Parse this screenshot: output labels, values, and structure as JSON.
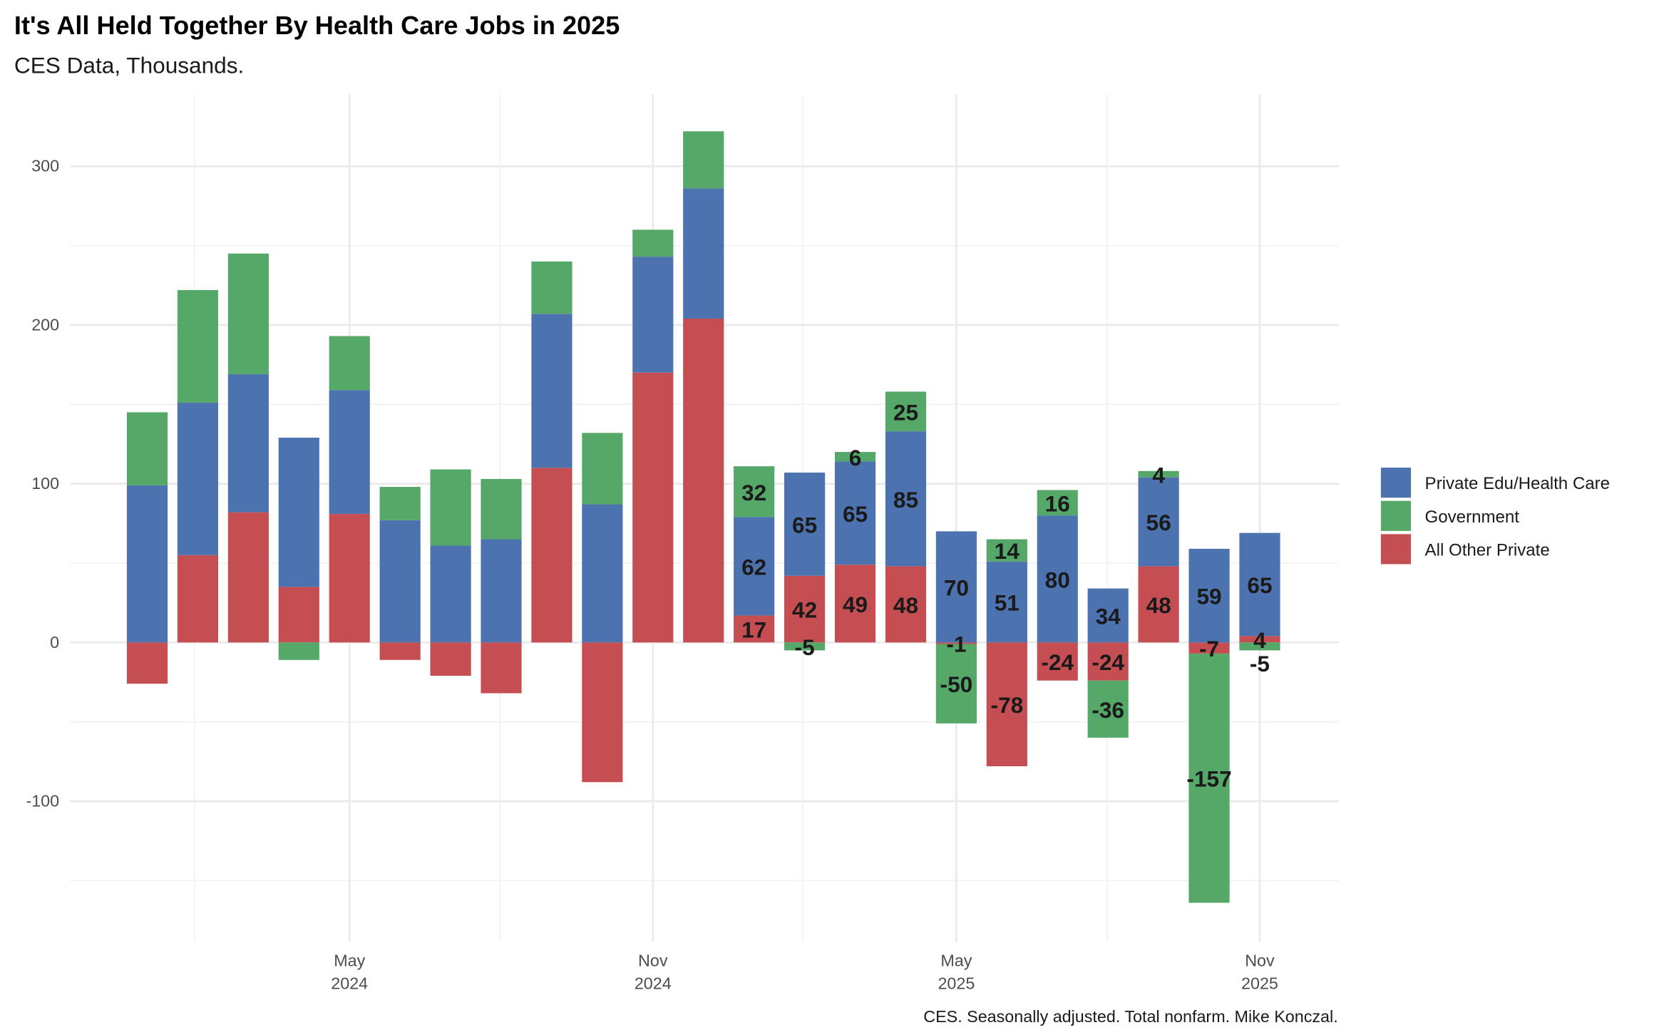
{
  "chart_data": {
    "type": "bar",
    "stacked": true,
    "title": "It's All Held Together By Health Care Jobs in 2025",
    "subtitle": "CES Data, Thousands.",
    "caption": "CES. Seasonally adjusted. Total nonfarm. Mike Konczal.",
    "xlabel": "",
    "ylabel": "",
    "ylim": [
      -175,
      330
    ],
    "yticks": [
      "-100",
      "0",
      "100",
      "200",
      "300"
    ],
    "ytick_values": [
      -100,
      0,
      100,
      200,
      300
    ],
    "xticks": [
      {
        "month_index": 4,
        "line1": "May",
        "line2": "2024"
      },
      {
        "month_index": 10,
        "line1": "Nov",
        "line2": "2024"
      },
      {
        "month_index": 16,
        "line1": "May",
        "line2": "2025"
      },
      {
        "month_index": 22,
        "line1": "Nov",
        "line2": "2025"
      }
    ],
    "grid": true,
    "legend_position": "right",
    "categories": [
      "Jan 2024",
      "Feb 2024",
      "Mar 2024",
      "Apr 2024",
      "May 2024",
      "Jun 2024",
      "Jul 2024",
      "Aug 2024",
      "Sep 2024",
      "Oct 2024",
      "Nov 2024",
      "Dec 2024",
      "Jan 2025",
      "Feb 2025",
      "Mar 2025",
      "Apr 2025",
      "May 2025",
      "Jun 2025",
      "Jul 2025",
      "Aug 2025",
      "Sep 2025",
      "Oct 2025",
      "Nov 2025"
    ],
    "labels_from_index": 12,
    "series": [
      {
        "name": "All Other Private",
        "color": "#C44E52",
        "values": [
          -26,
          55,
          82,
          35,
          81,
          -11,
          -21,
          -32,
          110,
          -88,
          170,
          204,
          17,
          42,
          49,
          48,
          -1,
          -78,
          -24,
          -24,
          48,
          -7,
          4
        ]
      },
      {
        "name": "Private Edu/Health Care",
        "color": "#4C72B0",
        "values": [
          99,
          96,
          87,
          94,
          78,
          77,
          61,
          65,
          97,
          87,
          73,
          82,
          62,
          65,
          65,
          85,
          70,
          51,
          80,
          34,
          56,
          59,
          65
        ]
      },
      {
        "name": "Government",
        "color": "#55A868",
        "values": [
          46,
          71,
          76,
          -11,
          34,
          21,
          48,
          38,
          33,
          45,
          17,
          36,
          32,
          -5,
          6,
          25,
          -50,
          14,
          16,
          -36,
          4,
          -157,
          -5
        ]
      }
    ],
    "legend": [
      "Private Edu/Health Care",
      "Government",
      "All Other Private"
    ]
  }
}
